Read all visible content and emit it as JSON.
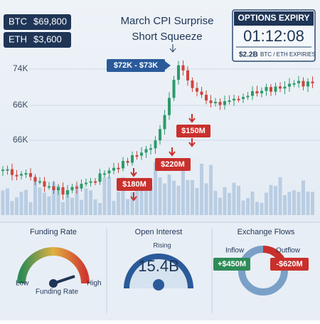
{
  "tickers": [
    {
      "symbol": "BTC",
      "price": "$69,800"
    },
    {
      "symbol": "ETH",
      "price": "$3,600"
    }
  ],
  "headline": {
    "title": "March CPI Surprise",
    "subtitle": "Short Squeeze"
  },
  "options_expiry": {
    "label": "OPTIONS EXPIRY",
    "countdown": "01:12:08",
    "amount": "$2.2B",
    "note": "BTC / ETH EXPIRIES"
  },
  "price_axis": [
    "74K",
    "66K",
    "66K"
  ],
  "callouts": {
    "range": "$72K - $73K",
    "liquidations": [
      "$150M",
      "$220M",
      "$180M"
    ]
  },
  "panels": {
    "funding": {
      "title": "Funding Rate",
      "low": "Low",
      "high": "High",
      "caption": "Funding Rate"
    },
    "open_interest": {
      "title": "Open Interest",
      "trend": "Rising",
      "value": "15.4B"
    },
    "flows": {
      "title": "Exchange Flows",
      "inflow": "Inflow",
      "outflow": "Outflow",
      "inflow_value": "+$450M",
      "outflow_value": "-$620M"
    }
  }
}
